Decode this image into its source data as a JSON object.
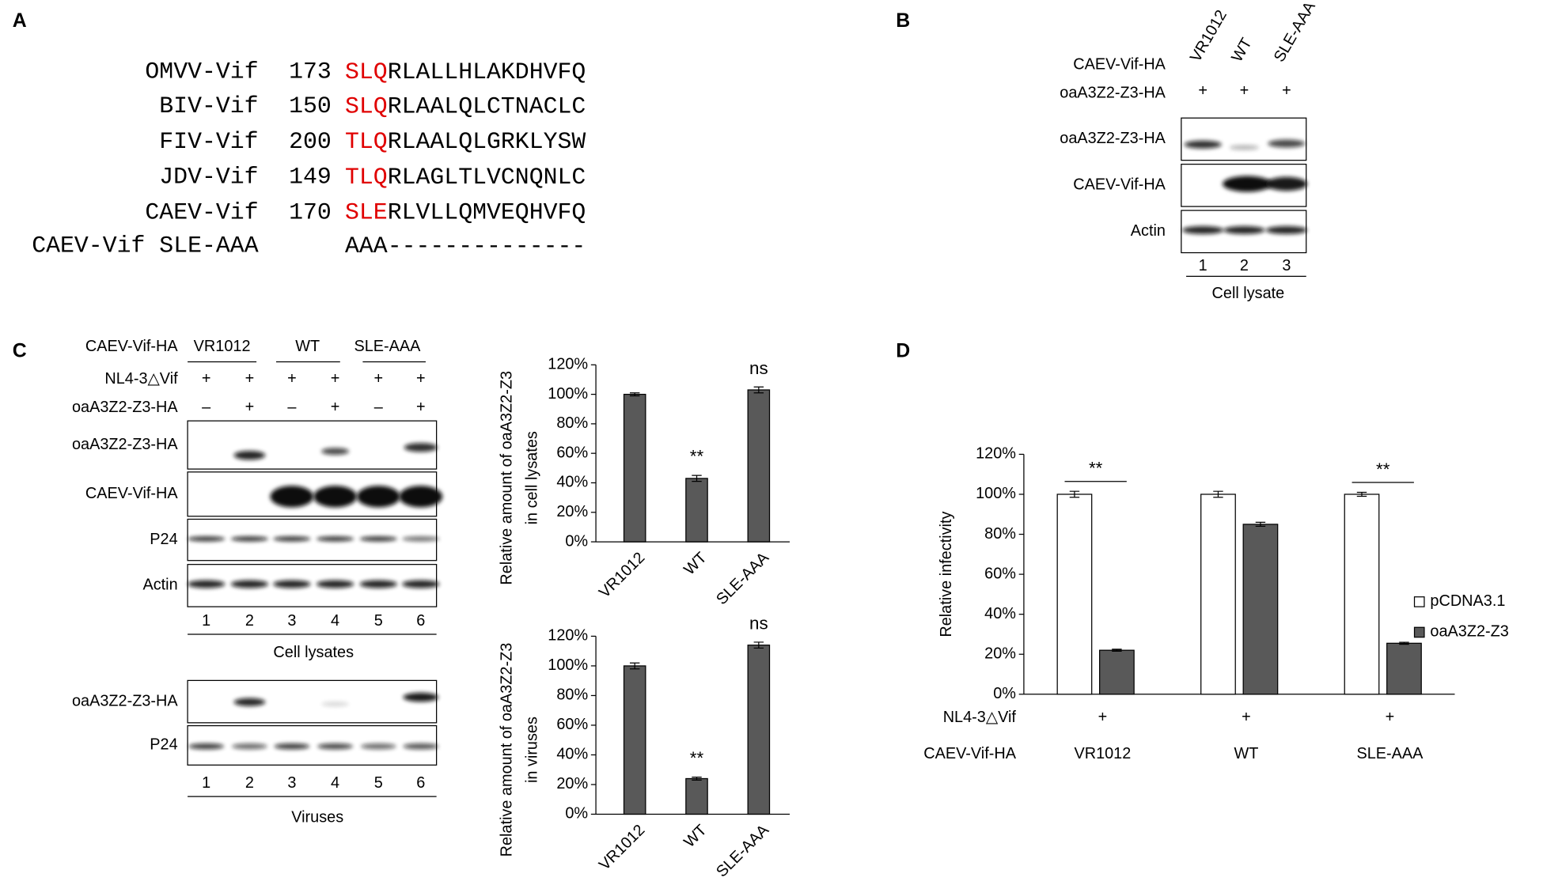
{
  "panel_a": {
    "label": "A",
    "rows": [
      {
        "name": "OMVV-Vif",
        "position": 173,
        "motif": "SLQ",
        "rest": "RLALLHLAKDHVFQ",
        "motif_color": "#e00000"
      },
      {
        "name": "BIV-Vif",
        "position": 150,
        "motif": "SLQ",
        "rest": "RLAALQLCTNACLC",
        "motif_color": "#e00000"
      },
      {
        "name": "FIV-Vif",
        "position": 200,
        "motif": "TLQ",
        "rest": "RLAALQLGRKLYSW",
        "motif_color": "#e00000"
      },
      {
        "name": "JDV-Vif",
        "position": 149,
        "motif": "TLQ",
        "rest": "RLAGLTLVCNQNLC",
        "motif_color": "#e00000"
      },
      {
        "name": "CAEV-Vif",
        "position": 170,
        "motif": "SLE",
        "rest": "RLVLLQMVEQHVFQ",
        "motif_color": "#e00000"
      },
      {
        "name": "CAEV-Vif SLE-AAA",
        "motif": "AAA",
        "rest": "--------------",
        "motif_color": "#000000"
      }
    ]
  },
  "panel_b": {
    "label": "B",
    "lanes": [
      "VR1012",
      "WT",
      "SLE-AAA"
    ],
    "lane_condition": "CAEV-Vif-HA",
    "condition": {
      "name": "oaA3Z2-Z3-HA",
      "signs": [
        "+",
        "+",
        "+"
      ]
    },
    "blots": [
      "oaA3Z2-Z3-HA",
      "CAEV-Vif-HA",
      "Actin"
    ],
    "lane_numbers": [
      1,
      2,
      3
    ],
    "sample": "Cell lysate"
  },
  "panel_c": {
    "label": "C",
    "condition_label": "CAEV-Vif-HA",
    "groups": [
      "VR1012",
      "WT",
      "SLE-AAA"
    ],
    "conditions": [
      {
        "name": "NL4-3△Vif",
        "signs": [
          "+",
          "+",
          "+",
          "+",
          "+",
          "+"
        ]
      },
      {
        "name": "oaA3Z2-Z3-HA",
        "signs": [
          "–",
          "+",
          "–",
          "+",
          "–",
          "+"
        ]
      }
    ],
    "lysate_blots": [
      "oaA3Z2-Z3-HA",
      "CAEV-Vif-HA",
      "P24",
      "Actin"
    ],
    "virus_blots": [
      "oaA3Z2-Z3-HA",
      "P24"
    ],
    "lane_numbers": [
      1,
      2,
      3,
      4,
      5,
      6
    ],
    "lysate_label": "Cell lysates",
    "virus_label": "Viruses"
  },
  "panel_d": {
    "label": "D",
    "condition": {
      "name": "NL4-3△Vif",
      "signs": [
        "+",
        "+",
        "+"
      ]
    },
    "category_label": "CAEV-Vif-HA"
  },
  "chart_data": [
    {
      "type": "bar",
      "y_label": [
        "Relative amount of oaA3Z2-Z3",
        "in cell lysates"
      ],
      "categories": [
        "VR1012",
        "WT",
        "SLE-AAA"
      ],
      "values": [
        100,
        43,
        103
      ],
      "errors": [
        1,
        2,
        2
      ],
      "annotations": [
        null,
        "**",
        "ns"
      ],
      "color": "#595959",
      "ylim": [
        0,
        120
      ],
      "yticks": [
        {
          "value": 0,
          "label": "0%"
        },
        {
          "value": 20,
          "label": "20%"
        },
        {
          "value": 40,
          "label": "40%"
        },
        {
          "value": 60,
          "label": "60%"
        },
        {
          "value": 80,
          "label": "80%"
        },
        {
          "value": 100,
          "label": "100%"
        },
        {
          "value": 120,
          "label": "120%"
        }
      ]
    },
    {
      "type": "bar",
      "y_label": [
        "Relative amount of oaA3Z2-Z3",
        "in viruses"
      ],
      "categories": [
        "VR1012",
        "WT",
        "SLE-AAA"
      ],
      "values": [
        100,
        24,
        114
      ],
      "errors": [
        2,
        1,
        2
      ],
      "annotations": [
        null,
        "**",
        "ns"
      ],
      "color": "#595959",
      "ylim": [
        0,
        120
      ],
      "yticks": [
        {
          "value": 0,
          "label": "0%"
        },
        {
          "value": 20,
          "label": "20%"
        },
        {
          "value": 40,
          "label": "40%"
        },
        {
          "value": 60,
          "label": "60%"
        },
        {
          "value": 80,
          "label": "80%"
        },
        {
          "value": 100,
          "label": "100%"
        },
        {
          "value": 120,
          "label": "120%"
        }
      ]
    },
    {
      "type": "grouped_bar",
      "y_label": [
        "Relative infectivity"
      ],
      "categories": [
        "VR1012",
        "WT",
        "SLE-AAA"
      ],
      "series": [
        {
          "name": "pCDNA3.1",
          "color": "#ffffff",
          "values": [
            100,
            100,
            100
          ],
          "errors": [
            1.5,
            1.5,
            1
          ]
        },
        {
          "name": "oaA3Z2-Z3",
          "color": "#595959",
          "values": [
            22,
            85,
            25.5
          ],
          "errors": [
            0.5,
            1,
            0.5
          ]
        }
      ],
      "annotations": [
        "**",
        null,
        "**"
      ],
      "legend": "right",
      "ylim": [
        0,
        120
      ],
      "yticks": [
        {
          "value": 0,
          "label": "0%"
        },
        {
          "value": 20,
          "label": "20%"
        },
        {
          "value": 40,
          "label": "40%"
        },
        {
          "value": 60,
          "label": "60%"
        },
        {
          "value": 80,
          "label": "80%"
        },
        {
          "value": 100,
          "label": "100%"
        },
        {
          "value": 120,
          "label": "120%"
        }
      ]
    }
  ]
}
